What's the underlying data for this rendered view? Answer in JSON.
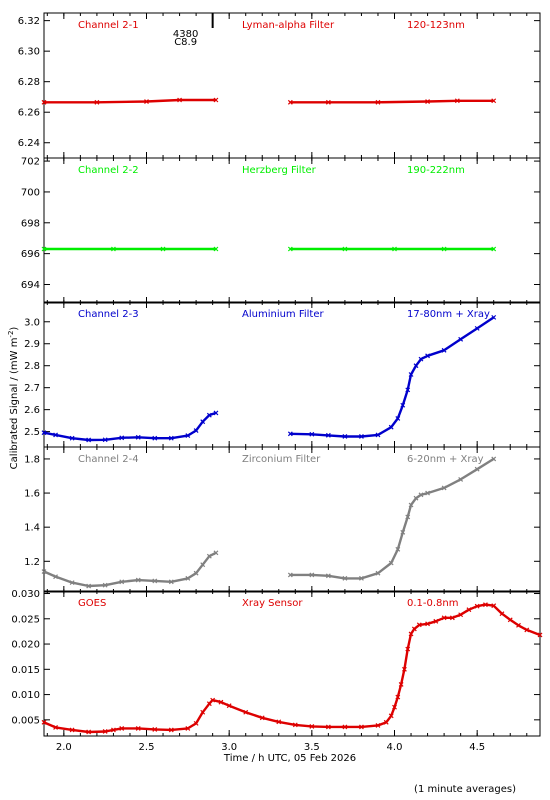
{
  "chart_data": {
    "type": "scatter",
    "xlabel": "Time / h UTC, 05 Feb 2026",
    "ylabel": "Calibrated Signal / (mW m",
    "ylabel_exp": "-2",
    "ylabel_close": ")",
    "footnote": "(1 minute averages)",
    "xlim": [
      1.88,
      4.88
    ],
    "xticks": [
      "2.0",
      "2.5",
      "3.0",
      "3.5",
      "4.0",
      "4.5"
    ],
    "marker_top": {
      "x": 2.9,
      "labels": [
        "4380",
        "C8.9"
      ]
    },
    "panels": [
      {
        "channel": "Channel 2-1",
        "filter": "Lyman-alpha Filter",
        "band": "120-123nm",
        "color": "#dd0000",
        "ylim": [
          6.23,
          6.325
        ],
        "yticks": [
          "6.24",
          "6.26",
          "6.28",
          "6.30",
          "6.32"
        ],
        "segments": [
          {
            "x": [
              1.88,
              2.2,
              2.5,
              2.7,
              2.92
            ],
            "y": [
              6.2665,
              6.2665,
              6.267,
              6.268,
              6.268
            ]
          },
          {
            "x": [
              3.37,
              3.6,
              3.9,
              4.2,
              4.38,
              4.6
            ],
            "y": [
              6.2665,
              6.2665,
              6.2665,
              6.267,
              6.2675,
              6.2675
            ]
          }
        ]
      },
      {
        "channel": "Channel 2-2",
        "filter": "Herzberg Filter",
        "band": "190-222nm",
        "color": "#00ee00",
        "ylim": [
          692.8,
          702.2
        ],
        "yticks": [
          "694",
          "696",
          "698",
          "700",
          "702"
        ],
        "segments": [
          {
            "x": [
              1.88,
              2.3,
              2.6,
              2.92
            ],
            "y": [
              696.3,
              696.3,
              696.3,
              696.3
            ]
          },
          {
            "x": [
              3.37,
              3.7,
              4.0,
              4.3,
              4.6
            ],
            "y": [
              696.3,
              696.3,
              696.3,
              696.3,
              696.3
            ]
          }
        ]
      },
      {
        "channel": "Channel 2-3",
        "filter": "Aluminium Filter",
        "band": "17-80nm + Xray",
        "color": "#0000cc",
        "ylim": [
          2.43,
          3.09
        ],
        "yticks": [
          "2.5",
          "2.6",
          "2.7",
          "2.8",
          "2.9",
          "3.0"
        ],
        "segments": [
          {
            "x": [
              1.88,
              1.95,
              2.05,
              2.15,
              2.25,
              2.35,
              2.45,
              2.55,
              2.65,
              2.75,
              2.8,
              2.84,
              2.88,
              2.92
            ],
            "y": [
              2.495,
              2.485,
              2.47,
              2.462,
              2.463,
              2.472,
              2.474,
              2.47,
              2.47,
              2.482,
              2.505,
              2.545,
              2.575,
              2.585
            ]
          },
          {
            "x": [
              3.37,
              3.5,
              3.6,
              3.7,
              3.8,
              3.9,
              3.98,
              4.02,
              4.05,
              4.08,
              4.1,
              4.13,
              4.16,
              4.2,
              4.3,
              4.4,
              4.5,
              4.6
            ],
            "y": [
              2.49,
              2.488,
              2.483,
              2.478,
              2.478,
              2.485,
              2.52,
              2.56,
              2.62,
              2.69,
              2.76,
              2.8,
              2.83,
              2.845,
              2.87,
              2.92,
              2.97,
              3.02
            ]
          }
        ]
      },
      {
        "channel": "Channel 2-4",
        "filter": "Zirconium Filter",
        "band": "6-20nm + Xray",
        "color": "#808080",
        "ylim": [
          1.02,
          1.87
        ],
        "yticks": [
          "1.2",
          "1.4",
          "1.6",
          "1.8"
        ],
        "segments": [
          {
            "x": [
              1.88,
              1.95,
              2.05,
              2.15,
              2.25,
              2.35,
              2.45,
              2.55,
              2.65,
              2.75,
              2.8,
              2.84,
              2.88,
              2.92
            ],
            "y": [
              1.14,
              1.11,
              1.075,
              1.055,
              1.06,
              1.08,
              1.09,
              1.085,
              1.08,
              1.1,
              1.13,
              1.18,
              1.23,
              1.25
            ]
          },
          {
            "x": [
              3.37,
              3.5,
              3.6,
              3.7,
              3.8,
              3.9,
              3.98,
              4.02,
              4.05,
              4.08,
              4.1,
              4.13,
              4.16,
              4.2,
              4.3,
              4.4,
              4.5,
              4.6
            ],
            "y": [
              1.12,
              1.12,
              1.115,
              1.1,
              1.1,
              1.13,
              1.19,
              1.27,
              1.37,
              1.46,
              1.53,
              1.57,
              1.59,
              1.6,
              1.63,
              1.68,
              1.74,
              1.8
            ]
          }
        ]
      },
      {
        "channel": "GOES",
        "filter": "Xray Sensor",
        "band": "0.1-0.8nm",
        "color": "#dd0000",
        "ylim": [
          0.0018,
          0.0305
        ],
        "yticks": [
          "0.005",
          "0.010",
          "0.015",
          "0.020",
          "0.025",
          "0.030"
        ],
        "segments": [
          {
            "x": [
              1.88,
              1.95,
              2.05,
              2.15,
              2.25,
              2.3,
              2.35,
              2.45,
              2.55,
              2.65,
              2.75,
              2.8,
              2.84,
              2.88,
              2.9,
              2.95,
              3.0,
              3.1,
              3.2,
              3.3,
              3.4,
              3.5,
              3.6,
              3.7,
              3.8,
              3.9,
              3.95,
              3.98,
              4.0,
              4.02,
              4.04,
              4.06,
              4.08,
              4.1,
              4.12,
              4.15,
              4.2,
              4.25,
              4.3,
              4.35,
              4.4,
              4.45,
              4.5,
              4.55,
              4.6,
              4.65,
              4.7,
              4.75,
              4.8,
              4.88
            ],
            "y": [
              0.0045,
              0.0035,
              0.003,
              0.0026,
              0.0027,
              0.003,
              0.0033,
              0.0033,
              0.0031,
              0.003,
              0.0033,
              0.0043,
              0.0065,
              0.0082,
              0.0089,
              0.0085,
              0.0078,
              0.0065,
              0.0054,
              0.0046,
              0.004,
              0.0037,
              0.0036,
              0.0036,
              0.0036,
              0.0039,
              0.0045,
              0.0058,
              0.0075,
              0.0095,
              0.012,
              0.015,
              0.019,
              0.022,
              0.023,
              0.0238,
              0.024,
              0.0245,
              0.0252,
              0.0252,
              0.0258,
              0.0268,
              0.0275,
              0.0278,
              0.0276,
              0.026,
              0.0248,
              0.0237,
              0.0228,
              0.0218
            ]
          }
        ]
      }
    ]
  }
}
